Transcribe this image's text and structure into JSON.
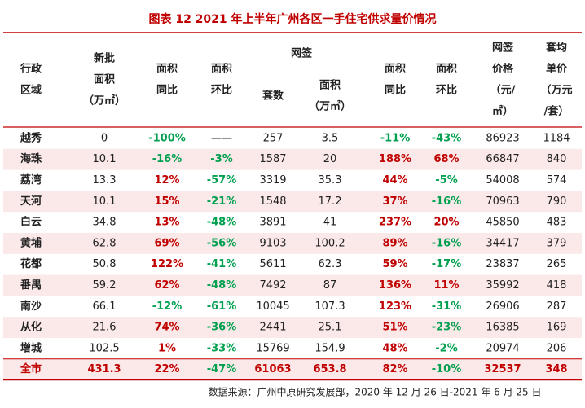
{
  "title": "图表 12 2021 年上半年广州各区一手住宅供求量价情况",
  "header": {
    "group": "网签",
    "columns": [
      [
        "行政",
        "区域"
      ],
      [
        "新批",
        "面积",
        "（万㎡）"
      ],
      [
        "面积",
        "同比"
      ],
      [
        "面积",
        "环比"
      ],
      [
        "套数"
      ],
      [
        "面积",
        "（万㎡）"
      ],
      [
        "面积",
        "同比"
      ],
      [
        "面积",
        "环比"
      ],
      [
        "网签",
        "价格",
        "（元/",
        "㎡）"
      ],
      [
        "套均",
        "单价",
        "（万元",
        "/套）"
      ]
    ]
  },
  "table": {
    "rows": [
      [
        "越秀",
        "0",
        "-100%",
        "——",
        "257",
        "3.5",
        "-11%",
        "-43%",
        "86923",
        "1184"
      ],
      [
        "海珠",
        "10.1",
        "-16%",
        "-3%",
        "1587",
        "20",
        "188%",
        "68%",
        "66847",
        "840"
      ],
      [
        "荔湾",
        "13.3",
        "12%",
        "-57%",
        "3319",
        "35.3",
        "44%",
        "-5%",
        "54008",
        "574"
      ],
      [
        "天河",
        "10.1",
        "15%",
        "-21%",
        "1548",
        "17.2",
        "37%",
        "-16%",
        "70963",
        "790"
      ],
      [
        "白云",
        "34.8",
        "13%",
        "-48%",
        "3891",
        "41",
        "237%",
        "20%",
        "45850",
        "483"
      ],
      [
        "黄埔",
        "62.8",
        "69%",
        "-56%",
        "9103",
        "100.2",
        "89%",
        "-16%",
        "34417",
        "379"
      ],
      [
        "花都",
        "50.8",
        "122%",
        "-41%",
        "5611",
        "62.3",
        "59%",
        "-17%",
        "23837",
        "265"
      ],
      [
        "番禺",
        "59.2",
        "62%",
        "-48%",
        "7492",
        "87",
        "136%",
        "11%",
        "35992",
        "418"
      ],
      [
        "南沙",
        "66.1",
        "-12%",
        "-61%",
        "10045",
        "107.3",
        "123%",
        "-31%",
        "26906",
        "287"
      ],
      [
        "从化",
        "21.6",
        "74%",
        "-36%",
        "2441",
        "25.1",
        "51%",
        "-23%",
        "16385",
        "169"
      ],
      [
        "增城",
        "102.5",
        "1%",
        "-33%",
        "15769",
        "154.9",
        "48%",
        "-2%",
        "20974",
        "206"
      ],
      [
        "全市",
        "431.3",
        "22%",
        "-47%",
        "61063",
        "653.8",
        "82%",
        "-10%",
        "32537",
        "348"
      ]
    ]
  },
  "footer": "数据来源：广州中原研究发展部，2020 年 12 月 26 日-2021 年 6 月 25 日"
}
